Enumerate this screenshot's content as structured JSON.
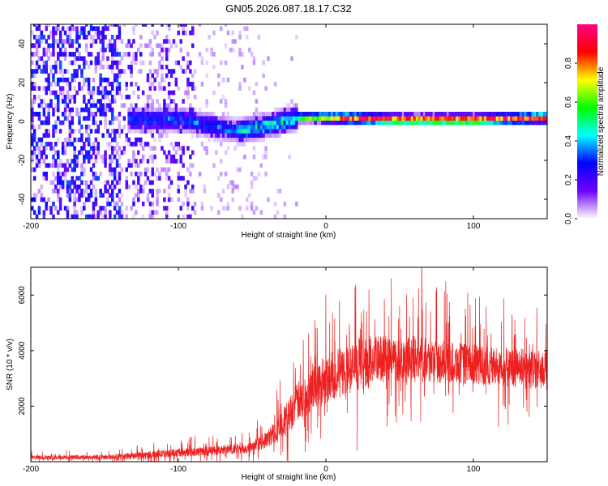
{
  "title": "GN05.2026.087.18.17.C32",
  "chart_data": [
    {
      "type": "heatmap",
      "name": "spectrogram",
      "xlabel": "Height of straight line (km)",
      "ylabel": "Frequency (Hz)",
      "xlim": [
        -200,
        150
      ],
      "ylim": [
        -50,
        50
      ],
      "xticks": [
        -200,
        -100,
        0,
        100
      ],
      "yticks": [
        -40,
        -20,
        0,
        20,
        40
      ],
      "colorbar": {
        "label": "Normalized spectral amplitude",
        "range": [
          0,
          1
        ],
        "ticks": [
          0.0,
          0.2,
          0.4,
          0.6,
          0.8
        ],
        "tick_labels": [
          "0.0",
          "0.2",
          "0.4",
          "0.6",
          "0.8"
        ],
        "colors": [
          "#ffffff",
          "#7000ff",
          "#0000ff",
          "#00ffff",
          "#00ff00",
          "#ffff00",
          "#ff0000",
          "#ff0080"
        ]
      },
      "ridge": {
        "description": "dominant frequency track",
        "points": [
          [
            -130,
            0
          ],
          [
            -100,
            0
          ],
          [
            -80,
            -3
          ],
          [
            -60,
            -6
          ],
          [
            -40,
            -3
          ],
          [
            -20,
            1
          ],
          [
            0,
            1
          ],
          [
            50,
            0
          ],
          [
            100,
            0
          ],
          [
            150,
            1
          ]
        ],
        "peak_amplitude": 0.9
      }
    },
    {
      "type": "line",
      "name": "snr",
      "xlabel": "Height of straight line (km)",
      "ylabel": "SNR (10 * v/v)",
      "xlim": [
        -200,
        150
      ],
      "ylim": [
        0,
        7000
      ],
      "xticks": [
        -200,
        -100,
        0,
        100
      ],
      "yticks": [
        2000,
        4000,
        6000
      ],
      "series": [
        {
          "name": "SNR",
          "color": "#ee2020",
          "envelope": {
            "x": [
              -200,
              -150,
              -130,
              -100,
              -80,
              -50,
              -40,
              -30,
              -20,
              -10,
              0,
              10,
              20,
              30,
              40,
              50,
              60,
              70,
              80,
              100,
              120,
              150
            ],
            "baseline": [
              150,
              160,
              200,
              330,
              380,
              500,
              800,
              1300,
              2100,
              2600,
              3000,
              3200,
              3400,
              3600,
              3700,
              3700,
              3700,
              3650,
              3600,
              3500,
              3400,
              3300
            ],
            "spread": [
              120,
              150,
              200,
              250,
              280,
              350,
              500,
              900,
              1200,
              1400,
              1500,
              1500,
              1500,
              1500,
              1400,
              1400,
              1400,
              1300,
              1300,
              1200,
              1200,
              1200
            ]
          },
          "max_peak": {
            "x": 65,
            "y": 7000
          }
        }
      ]
    }
  ]
}
